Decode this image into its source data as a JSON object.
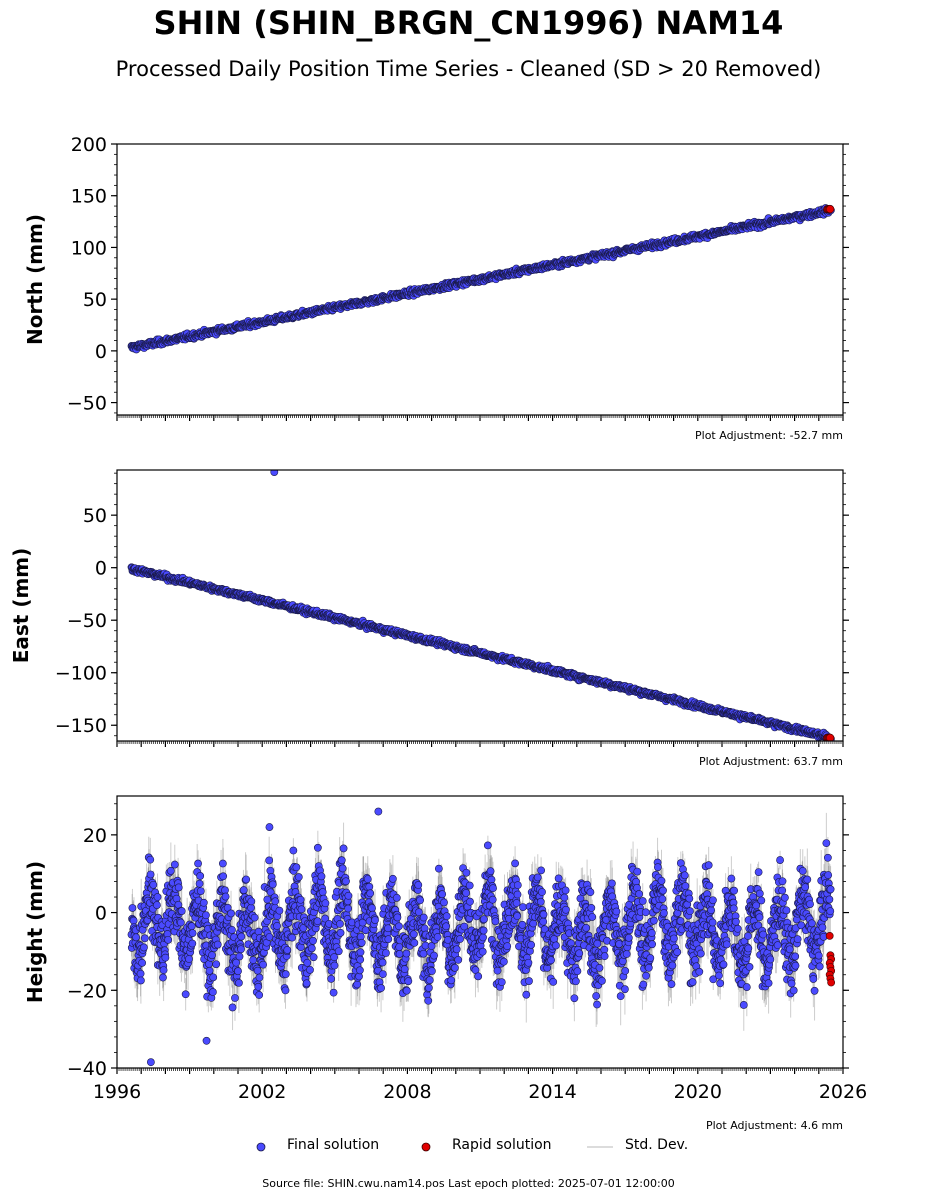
{
  "title": "SHIN (SHIN_BRGN_CN1996) NAM14",
  "subtitle": "Processed Daily Position Time Series - Cleaned (SD > 20 Removed)",
  "colors": {
    "final": "#4a4aff",
    "rapid": "#e00000",
    "stddev": "#b0b0b0",
    "edge": "#1a1a4a"
  },
  "legend": {
    "final": "Final solution",
    "rapid": "Rapid solution",
    "stddev": "Std. Dev."
  },
  "source": "Source file: SHIN.cwu.nam14.pos  Last epoch plotted: 2025-07-01 12:00:00",
  "chart_data": [
    {
      "type": "scatter",
      "ylabel": "North (mm)",
      "adjustment": "Plot Adjustment: -52.7 mm",
      "xlim": [
        1996,
        2026
      ],
      "ylim": [
        -62,
        200
      ],
      "yticks": [
        -50,
        0,
        50,
        100,
        150,
        200
      ],
      "ytick_labels": [
        "−50",
        "0",
        "50",
        "100",
        "150",
        "200"
      ],
      "trend": {
        "start_year": 1996.6,
        "start_value": 3,
        "end_year": 2025.5,
        "end_value": 136
      },
      "noise_mm": 2.2,
      "rapid_value": 137,
      "outliers": []
    },
    {
      "type": "scatter",
      "ylabel": "East (mm)",
      "adjustment": "Plot Adjustment: 63.7 mm",
      "xlim": [
        1996,
        2026
      ],
      "ylim": [
        -165,
        93
      ],
      "yticks": [
        -150,
        -100,
        -50,
        0,
        50
      ],
      "ytick_labels": [
        "−150",
        "−100",
        "−50",
        "0",
        "50"
      ],
      "trend": {
        "start_year": 1996.6,
        "start_value": -1,
        "end_year": 2025.5,
        "end_value": -162
      },
      "noise_mm": 2.0,
      "rapid_value": -162,
      "outliers": [
        [
          2002.5,
          91
        ]
      ]
    },
    {
      "type": "scatter",
      "ylabel": "Height (mm)",
      "adjustment": "Plot Adjustment: 4.6 mm",
      "xlim": [
        1996,
        2026
      ],
      "ylim": [
        -40,
        30
      ],
      "yticks": [
        -40,
        -20,
        0,
        20
      ],
      "ytick_labels": [
        "−40",
        "−20",
        "0",
        "20"
      ],
      "xticks": [
        1996,
        2002,
        2008,
        2014,
        2020,
        2026
      ],
      "xtick_labels": [
        "1996",
        "2002",
        "2008",
        "2014",
        "2020",
        "2026"
      ],
      "seasonal": {
        "mean": -4,
        "amplitude": 8,
        "noise_mm": 4.5,
        "clip": [
          -32,
          22
        ]
      },
      "rapid_values": [
        -6,
        -11,
        -12,
        -13,
        -14,
        -15,
        -16,
        -17,
        -18
      ],
      "outliers": [
        [
          1997.4,
          -38.5
        ],
        [
          2006.8,
          26
        ],
        [
          1999.7,
          -33
        ],
        [
          2002.3,
          22
        ]
      ]
    }
  ]
}
